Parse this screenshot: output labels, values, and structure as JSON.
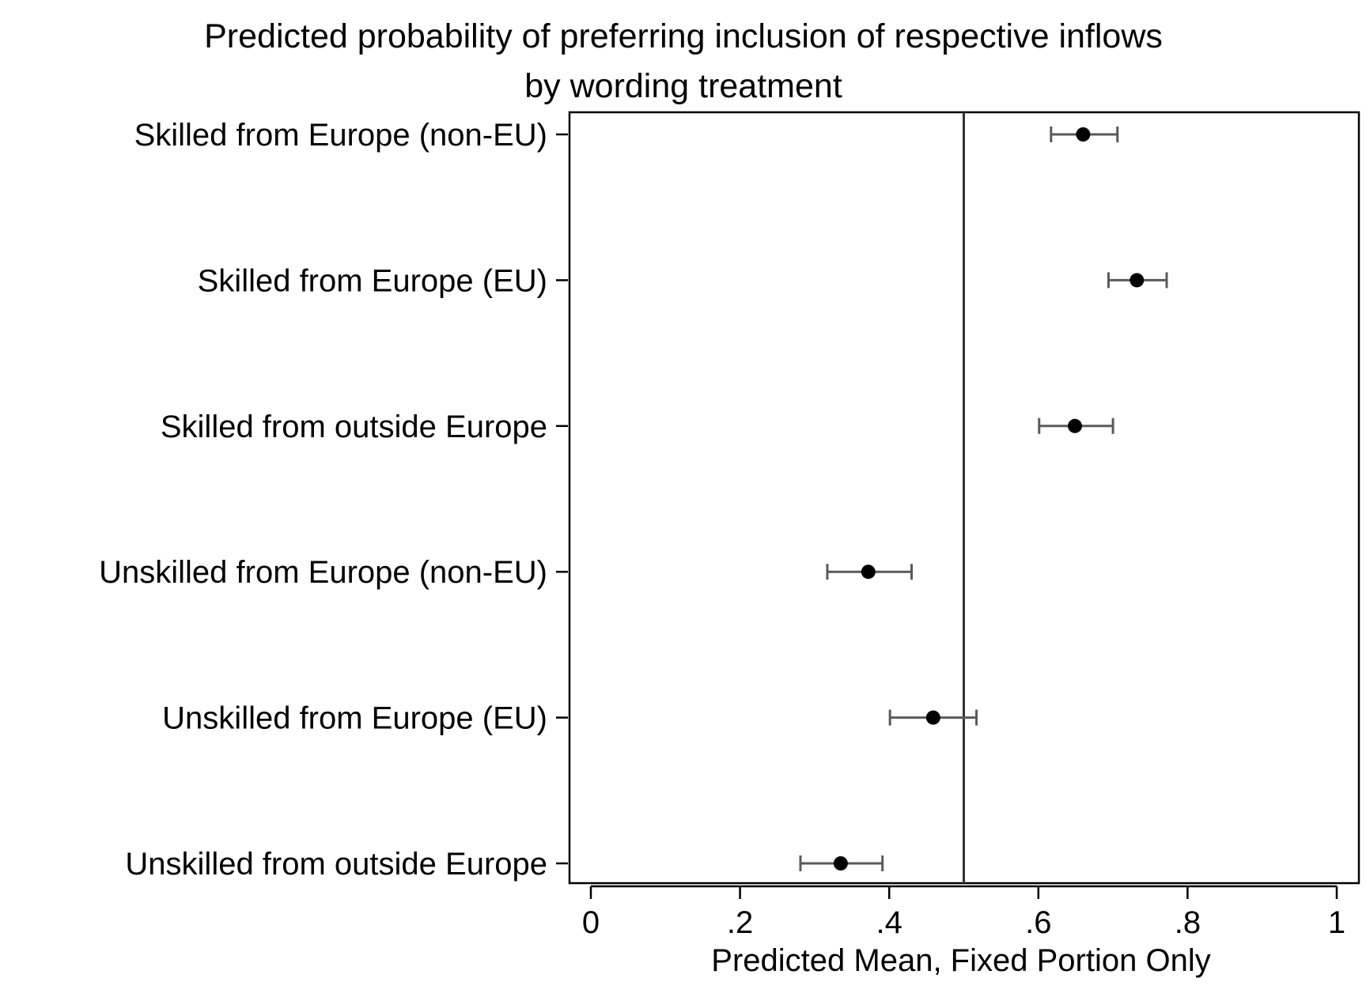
{
  "chart_data": {
    "type": "scatter",
    "title": "Predicted probability of preferring inclusion of respective inflows",
    "subtitle": "by wording treatment",
    "xlabel": "Predicted Mean, Fixed Portion Only",
    "ylabel": "",
    "xlim": [
      0,
      1
    ],
    "x_ticks": [
      0,
      0.2,
      0.4,
      0.6,
      0.8,
      1
    ],
    "x_tick_labels": [
      "0",
      ".2",
      ".4",
      ".6",
      ".8",
      "1"
    ],
    "reference_line_x": 0.5,
    "categories": [
      "Skilled from Europe (non-EU)",
      "Skilled from Europe (EU)",
      "Skilled from outside Europe",
      "Unskilled from Europe (non-EU)",
      "Unskilled from Europe (EU)",
      "Unskilled from outside Europe"
    ],
    "series": [
      {
        "values": [
          0.66,
          0.732,
          0.649,
          0.372,
          0.459,
          0.335
        ],
        "ci_low": [
          0.617,
          0.694,
          0.601,
          0.317,
          0.401,
          0.281
        ],
        "ci_high": [
          0.706,
          0.772,
          0.7,
          0.43,
          0.517,
          0.391
        ]
      }
    ],
    "grid": false,
    "colors": {
      "marker": "#000000",
      "error_bar": "#5a5a5a",
      "reference_line": "#333333",
      "frame": "#000000"
    }
  }
}
